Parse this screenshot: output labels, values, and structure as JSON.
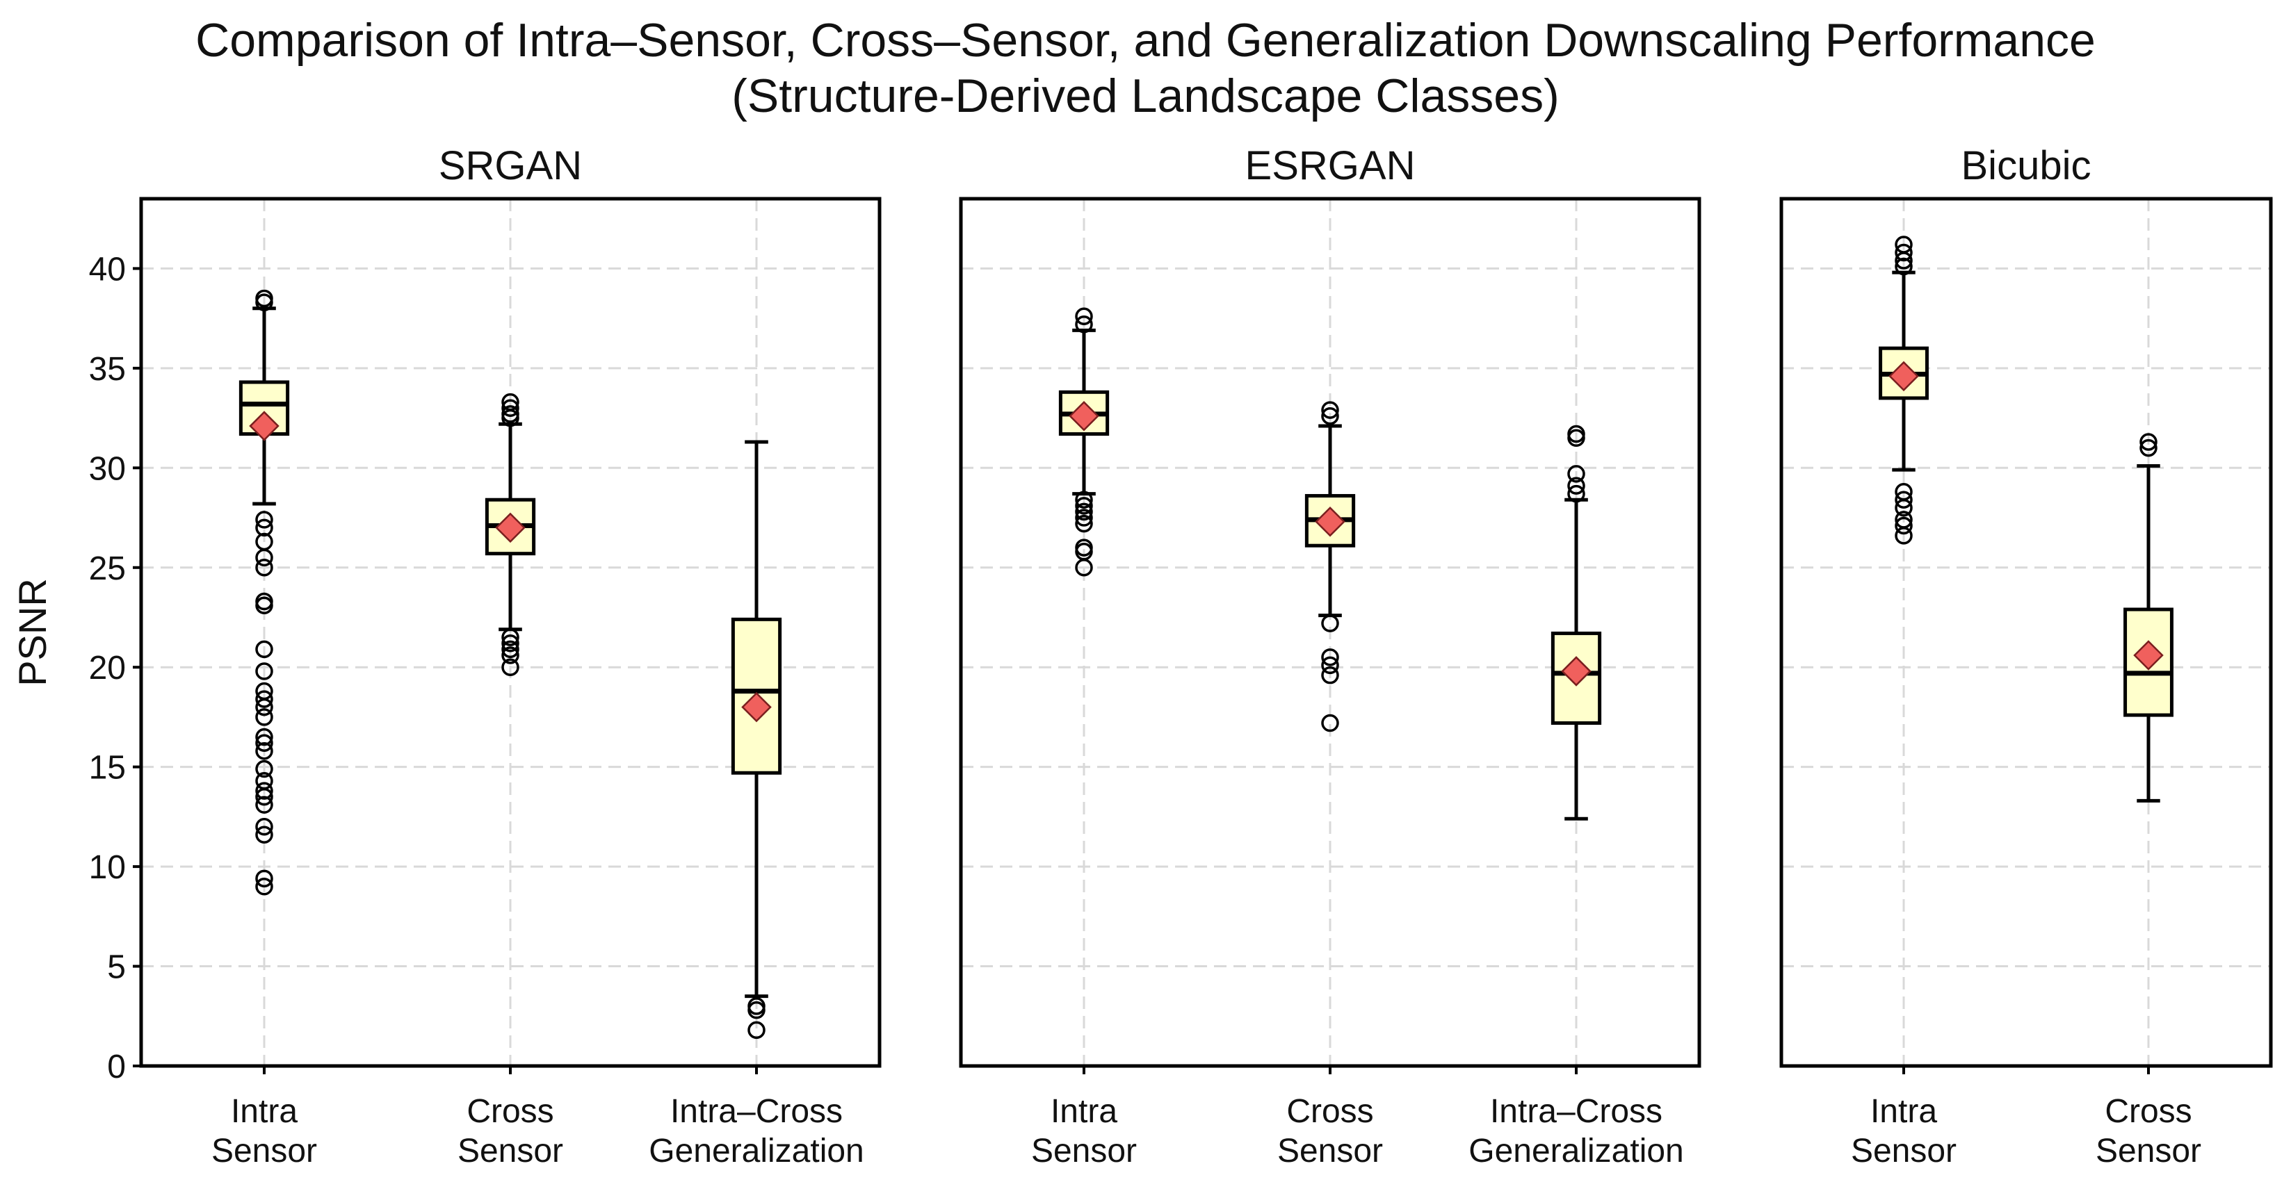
{
  "figure": {
    "title_line1": "Comparison of Intra–Sensor, Cross–Sensor, and Generalization Downscaling Performance",
    "title_line2": "(Structure-Derived Landscape Classes)"
  },
  "colors": {
    "box_fill": "#ffffcc",
    "box_edge": "#000000",
    "mean_marker": "#f0605d",
    "grid": "#d9d9d9"
  },
  "chart_data": [
    {
      "type": "box",
      "title": "SRGAN",
      "ylabel": "PSNR",
      "ylim": [
        0,
        43.5
      ],
      "yticks": [
        0,
        5,
        10,
        15,
        20,
        25,
        30,
        35,
        40
      ],
      "grid": true,
      "categories": [
        [
          "Intra",
          "Sensor"
        ],
        [
          "Cross",
          "Sensor"
        ],
        [
          "Intra–Cross",
          "Generalization"
        ]
      ],
      "boxes": [
        {
          "q1": 31.7,
          "median": 33.2,
          "q3": 34.3,
          "whisker_low": 28.2,
          "whisker_high": 38.0,
          "mean": 32.1,
          "outliers": [
            38.3,
            38.5,
            27.4,
            27.0,
            26.3,
            25.5,
            25.0,
            23.3,
            23.1,
            20.9,
            19.8,
            18.8,
            18.4,
            18.0,
            17.5,
            16.5,
            16.2,
            15.8,
            14.9,
            14.3,
            13.8,
            13.5,
            13.1,
            12.0,
            11.6,
            9.4,
            9.0
          ]
        },
        {
          "q1": 25.7,
          "median": 27.1,
          "q3": 28.4,
          "whisker_low": 21.9,
          "whisker_high": 32.2,
          "mean": 27.0,
          "outliers": [
            33.3,
            33.0,
            32.7,
            32.5,
            21.5,
            21.2,
            20.9,
            20.6,
            20.0
          ]
        },
        {
          "q1": 14.7,
          "median": 18.8,
          "q3": 22.4,
          "whisker_low": 3.5,
          "whisker_high": 31.3,
          "mean": 18.0,
          "outliers": [
            3.0,
            2.8,
            1.8
          ]
        }
      ]
    },
    {
      "type": "box",
      "title": "ESRGAN",
      "ylim": [
        0,
        43.5
      ],
      "yticks": [
        0,
        5,
        10,
        15,
        20,
        25,
        30,
        35,
        40
      ],
      "grid": true,
      "categories": [
        [
          "Intra",
          "Sensor"
        ],
        [
          "Cross",
          "Sensor"
        ],
        [
          "Intra–Cross",
          "Generalization"
        ]
      ],
      "boxes": [
        {
          "q1": 31.7,
          "median": 32.7,
          "q3": 33.8,
          "whisker_low": 28.7,
          "whisker_high": 36.9,
          "mean": 32.6,
          "outliers": [
            37.6,
            37.2,
            28.4,
            28.1,
            27.8,
            27.5,
            27.2,
            26.0,
            25.8,
            25.0
          ]
        },
        {
          "q1": 26.1,
          "median": 27.4,
          "q3": 28.6,
          "whisker_low": 22.6,
          "whisker_high": 32.1,
          "mean": 27.3,
          "outliers": [
            32.9,
            32.6,
            22.2,
            20.5,
            20.1,
            19.6,
            17.2
          ]
        },
        {
          "q1": 17.2,
          "median": 19.7,
          "q3": 21.7,
          "whisker_low": 12.4,
          "whisker_high": 28.4,
          "mean": 19.8,
          "outliers": [
            31.7,
            31.5,
            29.7,
            29.1,
            28.7
          ]
        }
      ]
    },
    {
      "type": "box",
      "title": "Bicubic",
      "ylim": [
        0,
        43.5
      ],
      "yticks": [
        0,
        5,
        10,
        15,
        20,
        25,
        30,
        35,
        40
      ],
      "grid": true,
      "categories": [
        [
          "Intra",
          "Sensor"
        ],
        [
          "Cross",
          "Sensor"
        ]
      ],
      "boxes": [
        {
          "q1": 33.5,
          "median": 34.7,
          "q3": 36.0,
          "whisker_low": 29.9,
          "whisker_high": 39.8,
          "mean": 34.6,
          "outliers": [
            41.2,
            40.8,
            40.4,
            40.1,
            28.8,
            28.4,
            28.0,
            27.4,
            27.1,
            26.6
          ]
        },
        {
          "q1": 17.6,
          "median": 19.7,
          "q3": 22.9,
          "whisker_low": 13.3,
          "whisker_high": 30.1,
          "mean": 20.6,
          "outliers": [
            31.3,
            31.0
          ]
        }
      ]
    }
  ]
}
